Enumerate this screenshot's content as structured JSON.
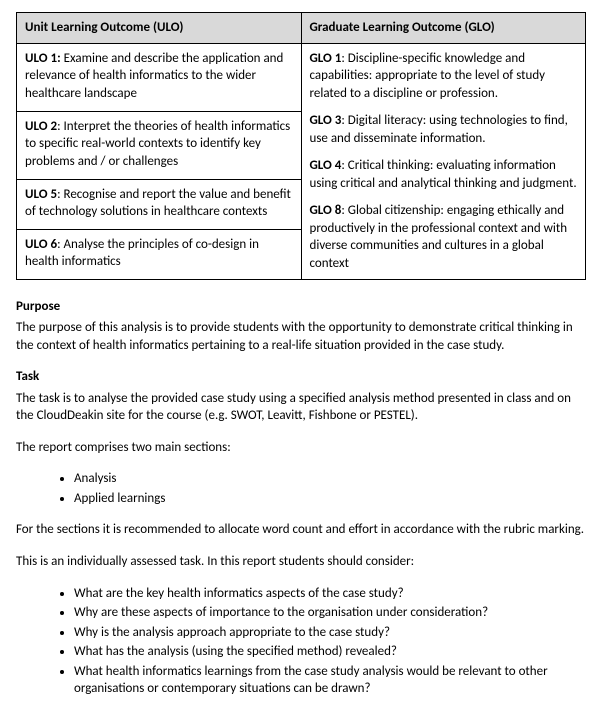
{
  "table": {
    "headers": {
      "ulo": "Unit Learning Outcome (ULO)",
      "glo": "Graduate Learning Outcome (GLO)"
    },
    "ulos": [
      {
        "label": "ULO 1:",
        "text": " Examine and describe the application and relevance of health informatics to the wider healthcare landscape"
      },
      {
        "label": "ULO 2",
        "text": ": Interpret the theories of health informatics to specific real-world contexts to identify key problems and / or challenges"
      },
      {
        "label": "ULO 5",
        "text": ": Recognise and report the value and benefit of technology solutions in healthcare contexts"
      },
      {
        "label": "ULO 6",
        "text": ": Analyse the principles of co-design in health informatics"
      }
    ],
    "glos": [
      {
        "label": "GLO 1",
        "text": ": Discipline-specific knowledge and capabilities: appropriate to the level of study related to a discipline or profession."
      },
      {
        "label": "GLO 3",
        "text": ": Digital literacy: using technologies to find, use and disseminate information."
      },
      {
        "label": "GLO 4",
        "text": ": Critical thinking: evaluating information using critical and analytical thinking and judgment."
      },
      {
        "label": "GLO 8",
        "text": ": Global citizenship: engaging ethically and productively in the professional context and with diverse communities and cultures in a global context"
      }
    ]
  },
  "purpose": {
    "heading": "Purpose",
    "text": "The purpose of this analysis is to provide students with the opportunity to demonstrate critical thinking in the context of health informatics pertaining to a real-life situation provided in the case study."
  },
  "task": {
    "heading": "Task",
    "intro": "The task is to analyse the provided case study using a specified analysis method presented in class and on the CloudDeakin site for the course (e.g. SWOT, Leavitt, Fishbone or PESTEL).",
    "sections_intro": "The report comprises two main sections:",
    "sections": [
      "Analysis",
      "Applied learnings"
    ],
    "allocation": "For the sections it is recommended to allocate word count and effort in accordance with the rubric marking.",
    "individual": "This is an individually assessed task.  In this report students should consider:",
    "considerations": [
      "What are the key health informatics aspects of the case study?",
      "Why are these aspects of importance to the organisation under consideration?",
      "Why is the analysis approach appropriate to the case study?",
      "What has the analysis (using the specified method) revealed?",
      "What health informatics learnings from the case study analysis would be relevant to other organisations or contemporary situations can be drawn?"
    ]
  }
}
